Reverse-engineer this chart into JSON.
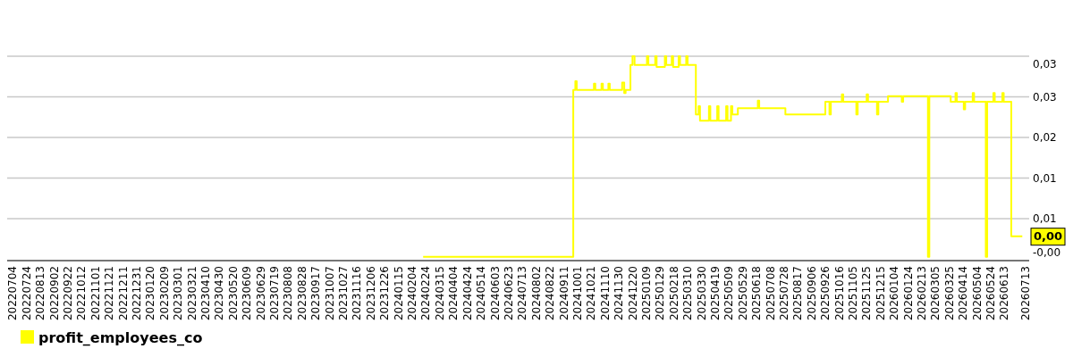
{
  "chart_data": {
    "type": "step",
    "xlim": [
      "2022-06-26",
      "2026-07-19"
    ],
    "ylim": [
      -0.0002,
      0.0325
    ],
    "yticks": [
      {
        "value": -0.0002,
        "label": "-0,00"
      },
      {
        "value": 0.0065,
        "label": "0,01"
      },
      {
        "value": 0.013,
        "label": "0,01"
      },
      {
        "value": 0.0195,
        "label": "0,02"
      },
      {
        "value": 0.026,
        "label": "0,03"
      },
      {
        "value": 0.0325,
        "label": "0,03"
      }
    ],
    "xticks": [
      {
        "value": "2022-07-04",
        "label": "20220704"
      },
      {
        "value": "2022-07-24",
        "label": "20220724"
      },
      {
        "value": "2022-08-13",
        "label": "20220813"
      },
      {
        "value": "2022-09-02",
        "label": "20220902"
      },
      {
        "value": "2022-09-22",
        "label": "20220922"
      },
      {
        "value": "2022-10-12",
        "label": "20221012"
      },
      {
        "value": "2022-11-01",
        "label": "20221101"
      },
      {
        "value": "2022-11-21",
        "label": "20221121"
      },
      {
        "value": "2022-12-11",
        "label": "20221211"
      },
      {
        "value": "2022-12-31",
        "label": "20221231"
      },
      {
        "value": "2023-01-20",
        "label": "20230120"
      },
      {
        "value": "2023-02-09",
        "label": "20230209"
      },
      {
        "value": "2023-03-01",
        "label": "20230301"
      },
      {
        "value": "2023-03-21",
        "label": "20230321"
      },
      {
        "value": "2023-04-10",
        "label": "20230410"
      },
      {
        "value": "2023-04-30",
        "label": "20230430"
      },
      {
        "value": "2023-05-20",
        "label": "20230520"
      },
      {
        "value": "2023-06-09",
        "label": "20230609"
      },
      {
        "value": "2023-06-29",
        "label": "20230629"
      },
      {
        "value": "2023-07-19",
        "label": "20230719"
      },
      {
        "value": "2023-08-08",
        "label": "20230808"
      },
      {
        "value": "2023-08-28",
        "label": "20230828"
      },
      {
        "value": "2023-09-17",
        "label": "20230917"
      },
      {
        "value": "2023-10-07",
        "label": "20231007"
      },
      {
        "value": "2023-10-27",
        "label": "20231027"
      },
      {
        "value": "2023-11-16",
        "label": "20231116"
      },
      {
        "value": "2023-12-06",
        "label": "20231206"
      },
      {
        "value": "2023-12-26",
        "label": "20231226"
      },
      {
        "value": "2024-01-15",
        "label": "20240115"
      },
      {
        "value": "2024-02-04",
        "label": "20240204"
      },
      {
        "value": "2024-02-24",
        "label": "20240224"
      },
      {
        "value": "2024-03-15",
        "label": "20240315"
      },
      {
        "value": "2024-04-04",
        "label": "20240404"
      },
      {
        "value": "2024-04-24",
        "label": "20240424"
      },
      {
        "value": "2024-05-14",
        "label": "20240514"
      },
      {
        "value": "2024-06-03",
        "label": "20240603"
      },
      {
        "value": "2024-06-23",
        "label": "20240623"
      },
      {
        "value": "2024-07-13",
        "label": "20240713"
      },
      {
        "value": "2024-08-02",
        "label": "20240802"
      },
      {
        "value": "2024-08-22",
        "label": "20240822"
      },
      {
        "value": "2024-09-11",
        "label": "20240911"
      },
      {
        "value": "2024-10-01",
        "label": "20241001"
      },
      {
        "value": "2024-10-21",
        "label": "20241021"
      },
      {
        "value": "2024-11-10",
        "label": "20241110"
      },
      {
        "value": "2024-11-30",
        "label": "20241130"
      },
      {
        "value": "2024-12-20",
        "label": "20241220"
      },
      {
        "value": "2025-01-09",
        "label": "20250109"
      },
      {
        "value": "2025-01-29",
        "label": "20250129"
      },
      {
        "value": "2025-02-18",
        "label": "20250218"
      },
      {
        "value": "2025-03-10",
        "label": "20250310"
      },
      {
        "value": "2025-03-30",
        "label": "20250330"
      },
      {
        "value": "2025-04-19",
        "label": "20250419"
      },
      {
        "value": "2025-05-09",
        "label": "20250509"
      },
      {
        "value": "2025-05-29",
        "label": "20250529"
      },
      {
        "value": "2025-06-18",
        "label": "20250618"
      },
      {
        "value": "2025-07-08",
        "label": "20250708"
      },
      {
        "value": "2025-07-28",
        "label": "20250728"
      },
      {
        "value": "2025-08-17",
        "label": "20250817"
      },
      {
        "value": "2025-09-06",
        "label": "20250906"
      },
      {
        "value": "2025-09-26",
        "label": "20250926"
      },
      {
        "value": "2025-10-16",
        "label": "20251016"
      },
      {
        "value": "2025-11-05",
        "label": "20251105"
      },
      {
        "value": "2025-11-25",
        "label": "20251125"
      },
      {
        "value": "2025-12-15",
        "label": "20251215"
      },
      {
        "value": "2026-01-04",
        "label": "20260104"
      },
      {
        "value": "2026-01-24",
        "label": "20260124"
      },
      {
        "value": "2026-02-13",
        "label": "20260213"
      },
      {
        "value": "2026-03-05",
        "label": "20260305"
      },
      {
        "value": "2026-03-25",
        "label": "20260325"
      },
      {
        "value": "2026-04-14",
        "label": "20260414"
      },
      {
        "value": "2026-05-04",
        "label": "20260504"
      },
      {
        "value": "2026-05-24",
        "label": "20260524"
      },
      {
        "value": "2026-06-13",
        "label": "20260613"
      },
      {
        "value": "2026-07-13",
        "label": "20260713"
      }
    ],
    "grid": "y",
    "legend": "bottom left",
    "annotations": [
      {
        "text": "0,00",
        "x": "2026-07-09",
        "y": 0.0037
      }
    ],
    "series": [
      {
        "name": "profit_employees_co",
        "color": "#ffff00",
        "x": [
          "2024-02-20",
          "2024-09-25",
          "2024-09-28",
          "2024-09-30",
          "2024-10-25",
          "2024-10-27",
          "2024-11-05",
          "2024-11-07",
          "2024-11-15",
          "2024-11-17",
          "2024-12-05",
          "2024-12-08",
          "2024-12-10",
          "2024-12-17",
          "2024-12-20",
          "2024-12-23",
          "2025-01-10",
          "2025-01-12",
          "2025-01-22",
          "2025-01-24",
          "2025-02-05",
          "2025-02-07",
          "2025-02-15",
          "2025-02-17",
          "2025-02-25",
          "2025-02-27",
          "2025-03-08",
          "2025-03-10",
          "2025-03-22",
          "2025-03-26",
          "2025-03-28",
          "2025-04-10",
          "2025-04-12",
          "2025-04-22",
          "2025-04-24",
          "2025-05-05",
          "2025-05-07",
          "2025-05-12",
          "2025-05-14",
          "2025-05-22",
          "2025-06-20",
          "2025-06-22",
          "2025-07-30",
          "2025-09-26",
          "2025-10-02",
          "2025-10-04",
          "2025-10-20",
          "2025-10-22",
          "2025-11-10",
          "2025-11-12",
          "2025-11-25",
          "2025-11-27",
          "2025-12-10",
          "2025-12-12",
          "2025-12-26",
          "2026-01-15",
          "2026-01-17",
          "2026-02-22",
          "2026-02-24",
          "2026-03-27",
          "2026-04-03",
          "2026-04-05",
          "2026-04-15",
          "2026-04-17",
          "2026-04-28",
          "2026-04-30",
          "2026-05-17",
          "2026-05-19",
          "2026-05-28",
          "2026-05-30",
          "2026-06-10",
          "2026-06-12",
          "2026-06-23",
          "2026-07-09"
        ],
        "values": [
          0.0004,
          0.0271,
          0.0285,
          0.0271,
          0.0281,
          0.0271,
          0.0281,
          0.0271,
          0.0281,
          0.0271,
          0.0283,
          0.0266,
          0.0271,
          0.0311,
          0.0325,
          0.0311,
          0.0325,
          0.0311,
          0.0325,
          0.0308,
          0.0325,
          0.0311,
          0.0325,
          0.0308,
          0.0325,
          0.0311,
          0.0325,
          0.0311,
          0.0232,
          0.0245,
          0.0222,
          0.0245,
          0.0222,
          0.0245,
          0.0222,
          0.0245,
          0.0222,
          0.0245,
          0.0232,
          0.0242,
          0.0254,
          0.0242,
          0.0232,
          0.0252,
          0.0232,
          0.0252,
          0.0264,
          0.0252,
          0.0232,
          0.0252,
          0.0264,
          0.0252,
          0.0232,
          0.0252,
          0.0261,
          0.0252,
          0.0261,
          0.0004,
          0.0261,
          0.0252,
          0.0266,
          0.0252,
          0.024,
          0.0252,
          0.0266,
          0.0252,
          0.0004,
          0.0252,
          0.0266,
          0.0252,
          0.0266,
          0.0252,
          0.0037,
          0.0037
        ]
      }
    ]
  }
}
